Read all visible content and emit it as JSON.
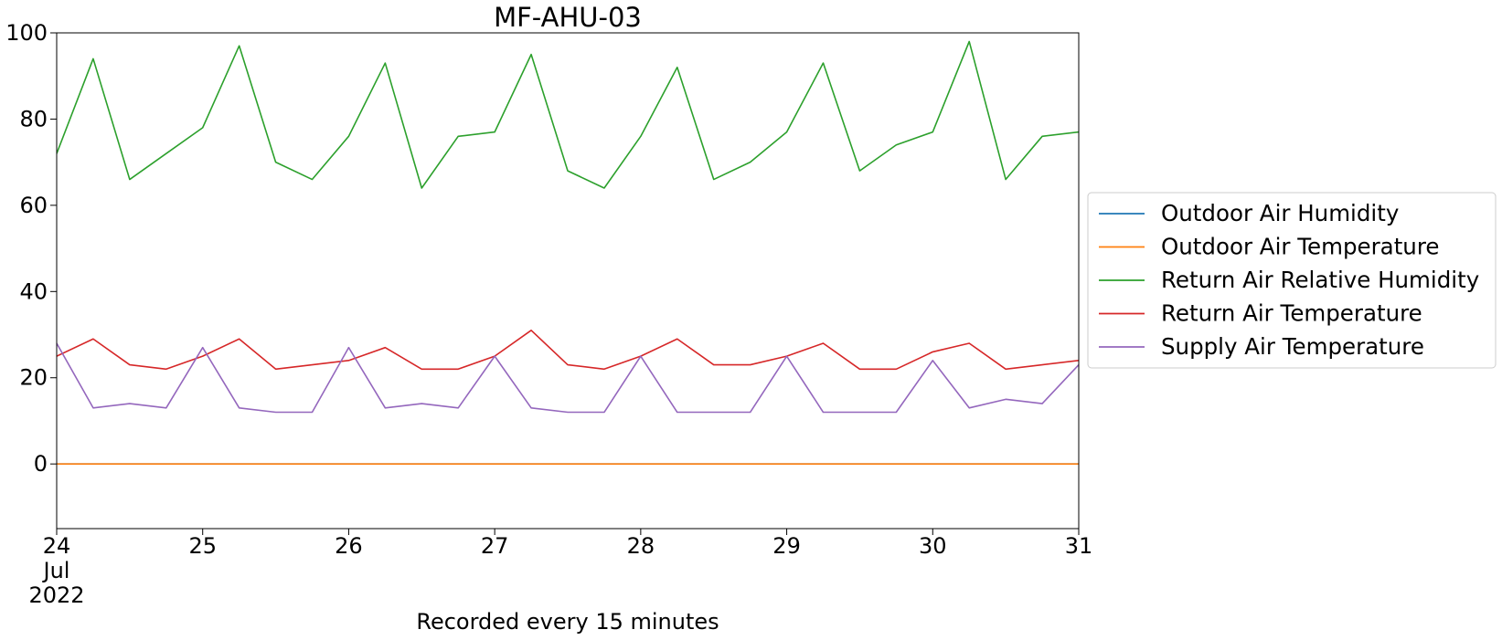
{
  "chart_data": {
    "type": "line",
    "title": "MF-AHU-03",
    "xlabel": "Recorded every 15 minutes",
    "ylabel": "",
    "xlim": [
      "2022-07-24",
      "2022-07-31"
    ],
    "ylim": [
      -15,
      100
    ],
    "yticks": [
      0,
      20,
      40,
      60,
      80,
      100
    ],
    "x_tick_labels": [
      {
        "date": "2022-07-24",
        "lines": [
          "24",
          "Jul",
          "2022"
        ]
      },
      {
        "date": "2022-07-25",
        "lines": [
          "25"
        ]
      },
      {
        "date": "2022-07-26",
        "lines": [
          "26"
        ]
      },
      {
        "date": "2022-07-27",
        "lines": [
          "27"
        ]
      },
      {
        "date": "2022-07-28",
        "lines": [
          "28"
        ]
      },
      {
        "date": "2022-07-29",
        "lines": [
          "29"
        ]
      },
      {
        "date": "2022-07-30",
        "lines": [
          "30"
        ]
      },
      {
        "date": "2022-07-31",
        "lines": [
          "31"
        ]
      }
    ],
    "grid": false,
    "legend": "outside-right",
    "x": [
      "2022-07-24 00:00",
      "2022-07-24 06:00",
      "2022-07-24 12:00",
      "2022-07-24 18:00",
      "2022-07-25 00:00",
      "2022-07-25 06:00",
      "2022-07-25 12:00",
      "2022-07-25 18:00",
      "2022-07-26 00:00",
      "2022-07-26 06:00",
      "2022-07-26 12:00",
      "2022-07-26 18:00",
      "2022-07-27 00:00",
      "2022-07-27 06:00",
      "2022-07-27 12:00",
      "2022-07-27 18:00",
      "2022-07-28 00:00",
      "2022-07-28 06:00",
      "2022-07-28 12:00",
      "2022-07-28 18:00",
      "2022-07-29 00:00",
      "2022-07-29 06:00",
      "2022-07-29 12:00",
      "2022-07-29 18:00",
      "2022-07-30 00:00",
      "2022-07-30 06:00",
      "2022-07-30 12:00",
      "2022-07-30 18:00",
      "2022-07-31 00:00"
    ],
    "series": [
      {
        "name": "Outdoor Air Humidity",
        "color": "#1f77b4",
        "values": [
          0,
          0,
          0,
          0,
          0,
          0,
          0,
          0,
          0,
          0,
          0,
          0,
          0,
          0,
          0,
          0,
          0,
          0,
          0,
          0,
          0,
          0,
          0,
          0,
          0,
          0,
          0,
          0,
          0
        ]
      },
      {
        "name": "Outdoor Air Temperature",
        "color": "#ff7f0e",
        "values": [
          0,
          0,
          0,
          0,
          0,
          0,
          0,
          0,
          0,
          0,
          0,
          0,
          0,
          0,
          0,
          0,
          0,
          0,
          0,
          0,
          0,
          0,
          0,
          0,
          0,
          0,
          0,
          0,
          0
        ]
      },
      {
        "name": "Return Air Relative Humidity",
        "color": "#2ca02c",
        "values": [
          72,
          94,
          66,
          72,
          78,
          97,
          70,
          66,
          76,
          93,
          64,
          76,
          77,
          95,
          68,
          64,
          76,
          92,
          66,
          70,
          77,
          93,
          68,
          74,
          77,
          98,
          66,
          76,
          77
        ]
      },
      {
        "name": "Return Air Temperature",
        "color": "#d62728",
        "values": [
          25,
          29,
          23,
          22,
          25,
          29,
          22,
          23,
          24,
          27,
          22,
          22,
          25,
          31,
          23,
          22,
          25,
          29,
          23,
          23,
          25,
          28,
          22,
          22,
          26,
          28,
          22,
          23,
          24
        ]
      },
      {
        "name": "Supply Air Temperature",
        "color": "#9467bd",
        "values": [
          28,
          13,
          14,
          13,
          27,
          13,
          12,
          12,
          27,
          13,
          14,
          13,
          25,
          13,
          12,
          12,
          25,
          12,
          12,
          12,
          25,
          12,
          12,
          12,
          24,
          13,
          15,
          14,
          23
        ]
      }
    ]
  }
}
